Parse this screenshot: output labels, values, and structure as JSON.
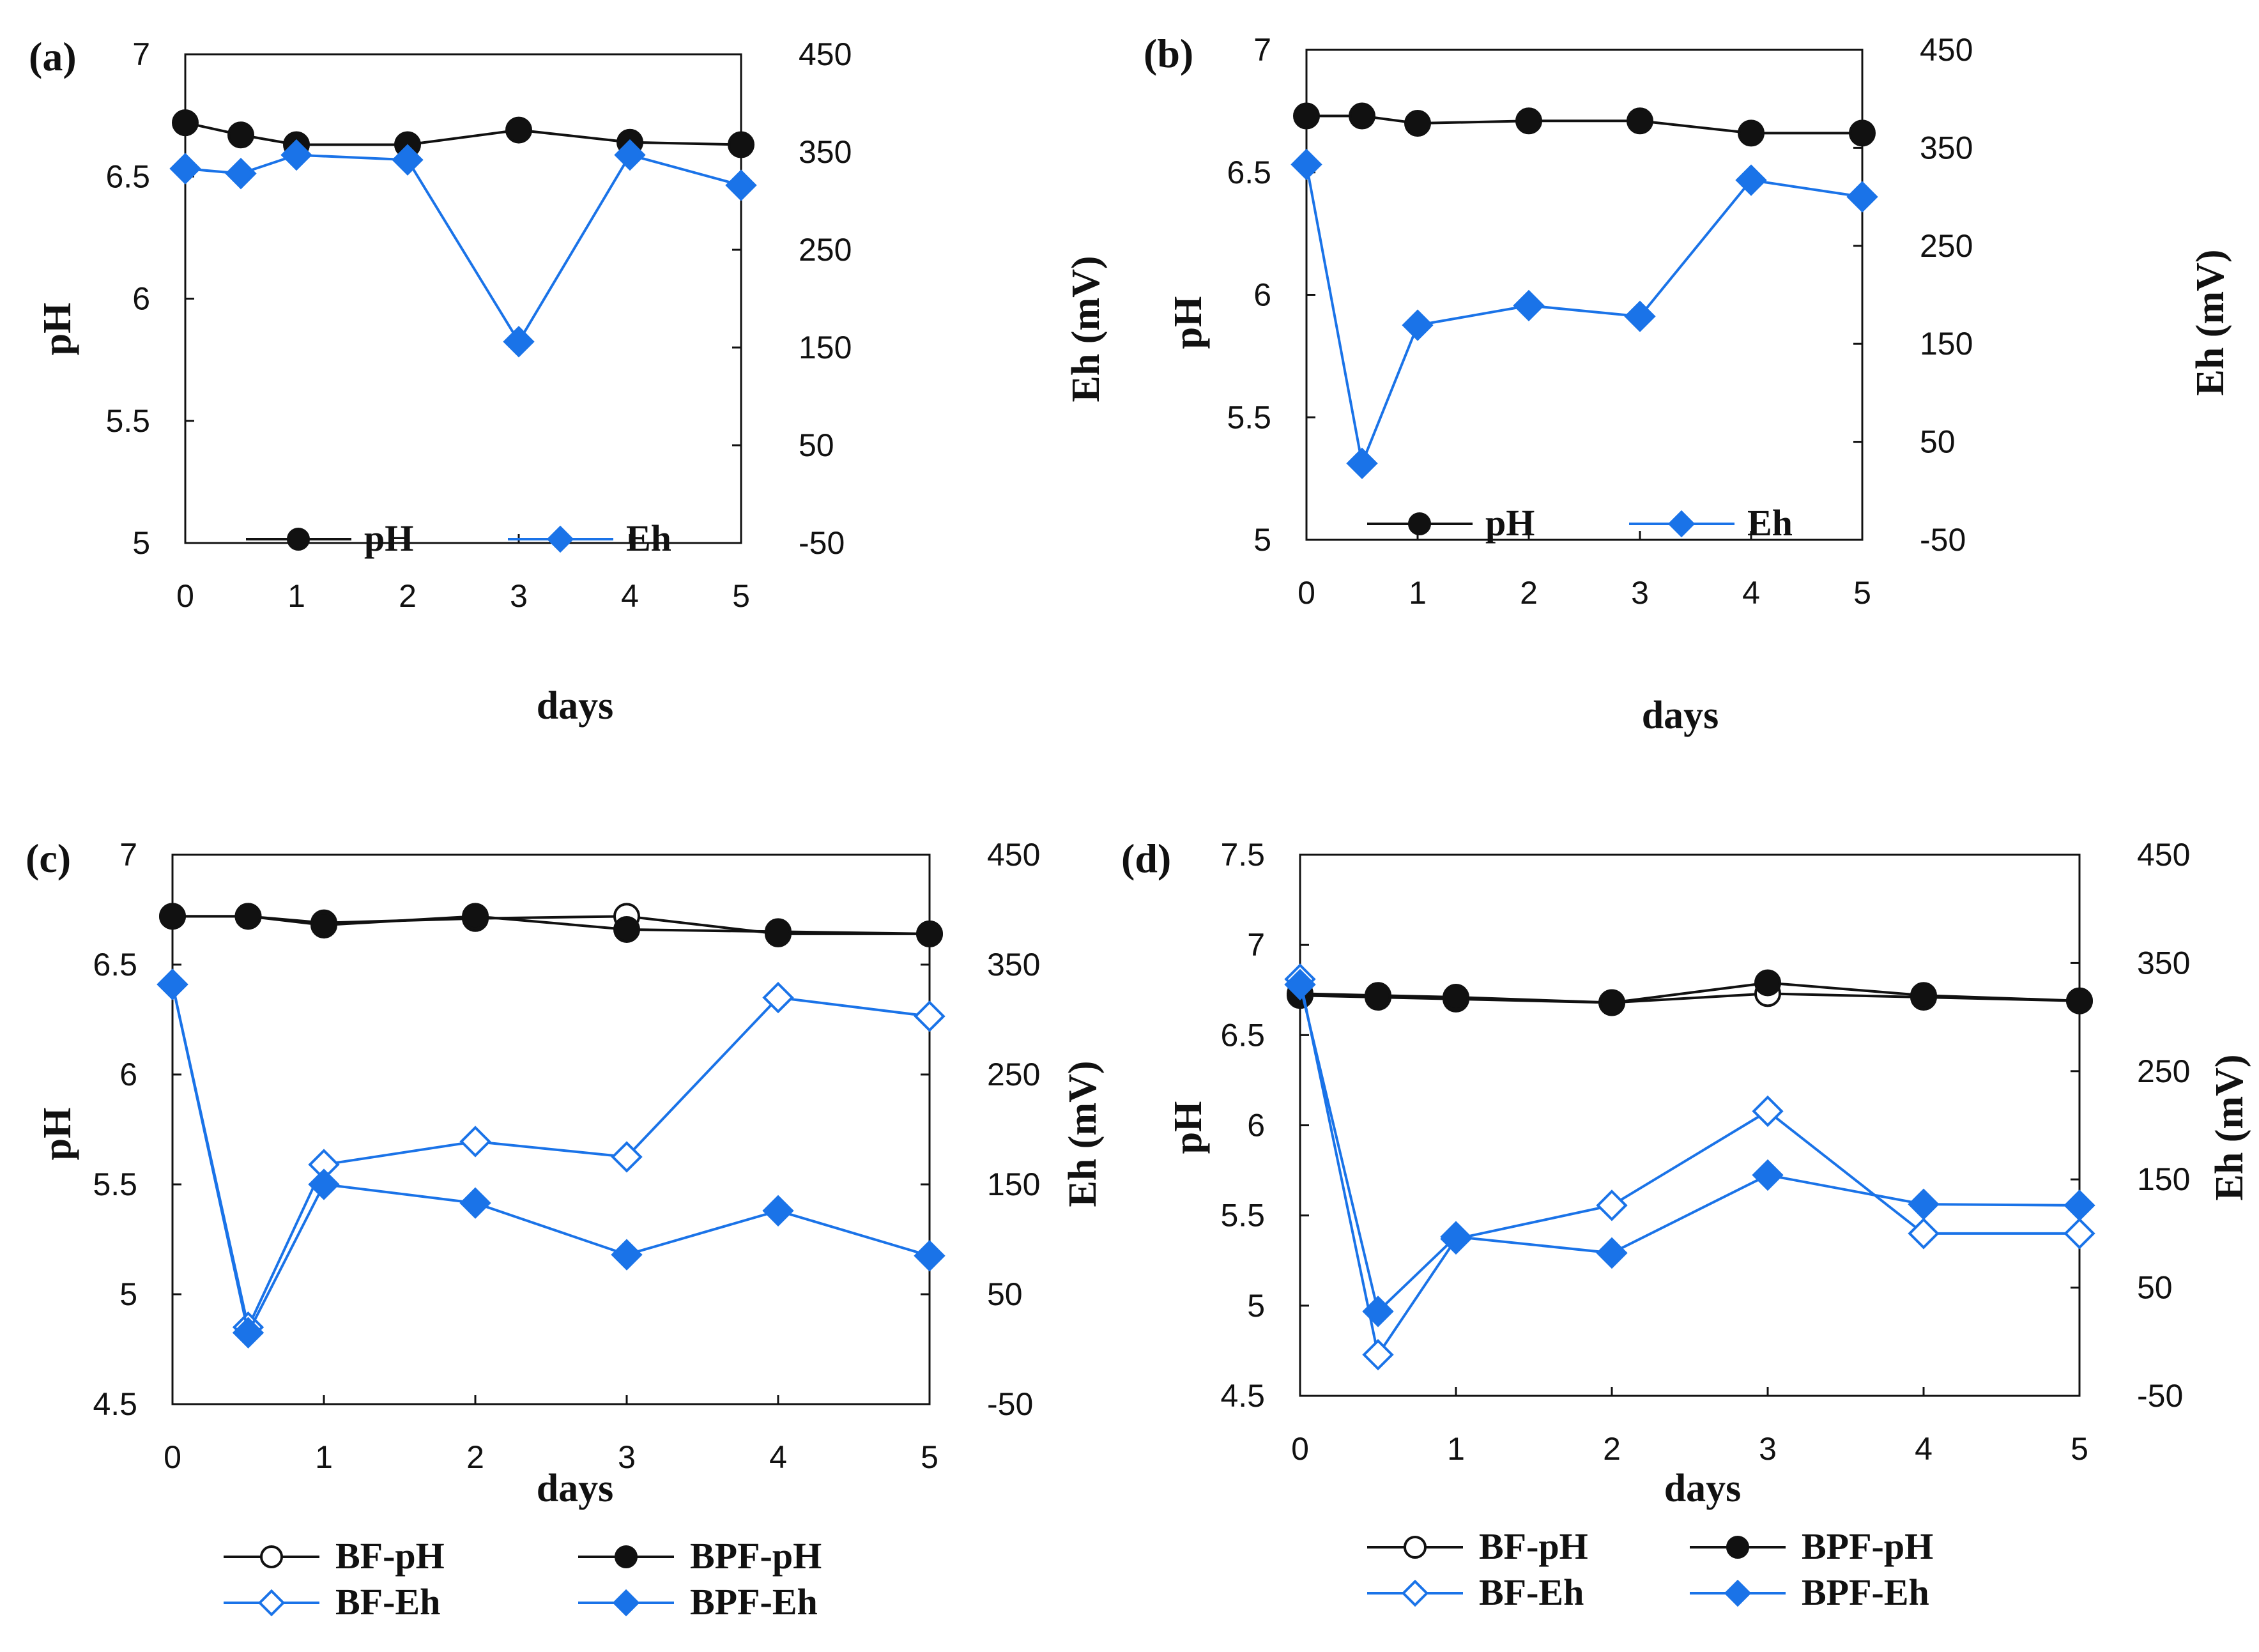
{
  "colors": {
    "ph": "#111111",
    "eh": "#1a73e8",
    "axis": "#111111"
  },
  "chart_data": [
    {
      "panel": "(a)",
      "type": "line",
      "xlabel": "days",
      "ylabel_left": "pH",
      "ylabel_right": "Eh (mV)",
      "x_ticks": [
        "0",
        "1",
        "2",
        "3",
        "4",
        "5"
      ],
      "y_left_ticks": [
        "5",
        "5.5",
        "6",
        "6.5",
        "7"
      ],
      "y_right_ticks": [
        "-50",
        "50",
        "150",
        "250",
        "350",
        "450"
      ],
      "xlim": [
        0,
        5
      ],
      "ylim_left": [
        5,
        7
      ],
      "ylim_right": [
        -50,
        450
      ],
      "legend": [
        "pH",
        "Eh"
      ],
      "legend_position": "bottom-center",
      "series": [
        {
          "name": "pH",
          "axis": "left",
          "marker": "circle-filled",
          "x": [
            0,
            0.5,
            1,
            2,
            3,
            4,
            5
          ],
          "values": [
            6.72,
            6.67,
            6.63,
            6.63,
            6.69,
            6.64,
            6.63
          ]
        },
        {
          "name": "Eh",
          "axis": "right",
          "marker": "diamond-filled",
          "x": [
            0,
            0.5,
            1,
            2,
            3,
            4,
            5
          ],
          "values": [
            333,
            328,
            347,
            342,
            156,
            347,
            316
          ]
        }
      ]
    },
    {
      "panel": "(b)",
      "type": "line",
      "xlabel": "days",
      "ylabel_left": "pH",
      "ylabel_right": "Eh (mV)",
      "x_ticks": [
        "0",
        "1",
        "2",
        "3",
        "4",
        "5"
      ],
      "y_left_ticks": [
        "5",
        "5.5",
        "6",
        "6.5",
        "7"
      ],
      "y_right_ticks": [
        "-50",
        "50",
        "150",
        "250",
        "350",
        "450"
      ],
      "xlim": [
        0,
        5
      ],
      "ylim_left": [
        5,
        7
      ],
      "ylim_right": [
        -50,
        450
      ],
      "legend": [
        "pH",
        "Eh"
      ],
      "legend_position": "bottom-center",
      "series": [
        {
          "name": "pH",
          "axis": "left",
          "marker": "circle-filled",
          "x": [
            0,
            0.5,
            1,
            2,
            3,
            4,
            5
          ],
          "values": [
            6.73,
            6.73,
            6.7,
            6.71,
            6.71,
            6.66,
            6.66
          ]
        },
        {
          "name": "Eh",
          "axis": "right",
          "marker": "diamond-filled",
          "x": [
            0,
            0.5,
            1,
            2,
            3,
            4,
            5
          ],
          "values": [
            333,
            28,
            169,
            189,
            178,
            317,
            300
          ]
        }
      ]
    },
    {
      "panel": "(c)",
      "type": "line",
      "xlabel": "days",
      "ylabel_left": "pH",
      "ylabel_right": "Eh (mV)",
      "x_ticks": [
        "0",
        "1",
        "2",
        "3",
        "4",
        "5"
      ],
      "y_left_ticks": [
        "4.5",
        "5",
        "5.5",
        "6",
        "6.5",
        "7"
      ],
      "y_right_ticks": [
        "-50",
        "50",
        "150",
        "250",
        "350",
        "450"
      ],
      "xlim": [
        0,
        5
      ],
      "ylim_left": [
        4.5,
        7
      ],
      "ylim_right": [
        -50,
        450
      ],
      "legend": [
        "BF-pH",
        "BPF-pH",
        "BF-Eh",
        "BPF-Eh"
      ],
      "legend_position": "below",
      "series": [
        {
          "name": "BF-pH",
          "axis": "left",
          "marker": "circle-open",
          "x": [
            0,
            0.5,
            1,
            2,
            3,
            4,
            5
          ],
          "values": [
            6.72,
            6.72,
            6.69,
            6.71,
            6.72,
            6.64,
            6.64
          ]
        },
        {
          "name": "BPF-pH",
          "axis": "left",
          "marker": "circle-filled",
          "x": [
            0,
            0.5,
            1,
            2,
            3,
            4,
            5
          ],
          "values": [
            6.72,
            6.72,
            6.68,
            6.72,
            6.66,
            6.65,
            6.64
          ]
        },
        {
          "name": "BF-Eh",
          "axis": "right",
          "marker": "diamond-open",
          "x": [
            0,
            0.5,
            1,
            2,
            3,
            4,
            5
          ],
          "values": [
            332,
            20,
            168,
            189,
            175,
            320,
            303
          ]
        },
        {
          "name": "BPF-Eh",
          "axis": "right",
          "marker": "diamond-filled",
          "x": [
            0,
            0.5,
            1,
            2,
            3,
            4,
            5
          ],
          "values": [
            332,
            15,
            150,
            133,
            86,
            126,
            85
          ]
        }
      ]
    },
    {
      "panel": "(d)",
      "type": "line",
      "xlabel": "days",
      "ylabel_left": "pH",
      "ylabel_right": "Eh (mV)",
      "x_ticks": [
        "0",
        "1",
        "2",
        "3",
        "4",
        "5"
      ],
      "y_left_ticks": [
        "4.5",
        "5",
        "5.5",
        "6",
        "6.5",
        "7",
        "7.5"
      ],
      "y_right_ticks": [
        "-50",
        "50",
        "150",
        "250",
        "350",
        "450"
      ],
      "xlim": [
        0,
        5
      ],
      "ylim_left": [
        4.5,
        7.5
      ],
      "ylim_right": [
        -50,
        450
      ],
      "legend": [
        "BF-pH",
        "BPF-pH",
        "BF-Eh",
        "BPF-Eh"
      ],
      "legend_position": "below",
      "series": [
        {
          "name": "BF-pH",
          "axis": "left",
          "marker": "circle-open",
          "x": [
            0,
            0.5,
            1,
            2,
            3,
            4,
            5
          ],
          "values": [
            6.72,
            6.71,
            6.7,
            6.68,
            6.73,
            6.71,
            6.69
          ]
        },
        {
          "name": "BPF-pH",
          "axis": "left",
          "marker": "circle-filled",
          "x": [
            0,
            0.5,
            1,
            2,
            3,
            4,
            5
          ],
          "values": [
            6.73,
            6.72,
            6.71,
            6.68,
            6.79,
            6.72,
            6.69
          ]
        },
        {
          "name": "BF-Eh",
          "axis": "right",
          "marker": "diamond-open",
          "x": [
            0,
            0.5,
            1,
            2,
            3,
            4,
            5
          ],
          "values": [
            335,
            -12,
            95,
            126,
            213,
            100,
            100
          ]
        },
        {
          "name": "BPF-Eh",
          "axis": "right",
          "marker": "diamond-filled",
          "x": [
            0,
            0.5,
            1,
            2,
            3,
            4,
            5
          ],
          "values": [
            330,
            28,
            97,
            82,
            154,
            127,
            126
          ]
        }
      ]
    }
  ]
}
